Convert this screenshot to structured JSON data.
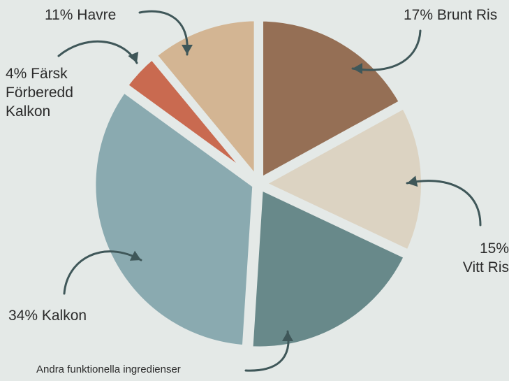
{
  "chart_data": {
    "type": "pie",
    "title": "",
    "slices": [
      {
        "label": "Brunt Ris",
        "value": 17,
        "display": "17% Brunt Ris",
        "color": "#956F55"
      },
      {
        "label": "Vitt Ris",
        "value": 15,
        "display": "15%\nVitt Ris",
        "color": "#DCD3C2"
      },
      {
        "label": "Andra funktionella ingredienser",
        "value": 19,
        "display": "Andra funktionella ingredienser",
        "color": "#68898A"
      },
      {
        "label": "Kalkon",
        "value": 34,
        "display": "34% Kalkon",
        "color": "#8AAAB0"
      },
      {
        "label": "Färsk Förberedd Kalkon",
        "value": 4,
        "display": "4% Färsk\nFörberedd\nKalkon",
        "color": "#C96A50"
      },
      {
        "label": "Havre",
        "value": 11,
        "display": "11% Havre",
        "color": "#D3B593"
      }
    ],
    "arrow_color": "#3F5759"
  }
}
